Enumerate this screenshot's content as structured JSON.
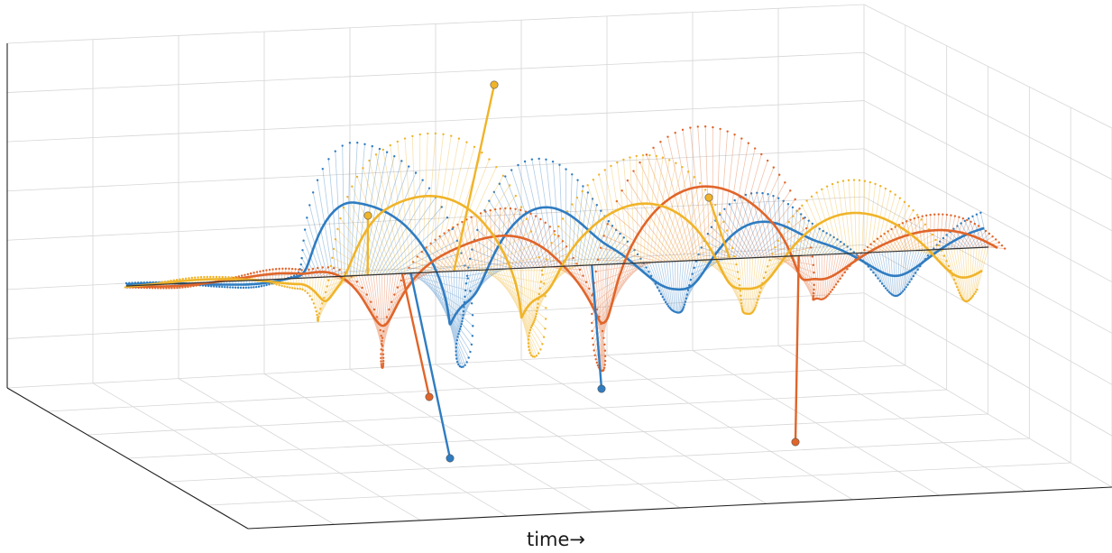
{
  "chart_data": {
    "type": "line",
    "dimension": "3d",
    "title": "",
    "xlabel": "time→",
    "ylabel": "",
    "zlabel": "",
    "grid": true,
    "legend": "none",
    "axis_ticks": "none",
    "t_range": [
      0,
      10
    ],
    "series": [
      {
        "color": "#2F7CC1",
        "description_values": {
          "t": [
            0,
            1,
            2,
            2.6,
            3.2,
            4,
            4.8,
            5.5,
            6.3,
            7.2,
            8,
            9,
            10
          ],
          "amplitude": [
            0.05,
            0.1,
            0.2,
            2.4,
            2.8,
            1.2,
            2.2,
            1.0,
            0.9,
            1.5,
            0.6,
            0.8,
            0.7
          ]
        }
      },
      {
        "color": "#E0652A",
        "description_values": {
          "t": [
            0,
            1,
            2,
            2.6,
            3.2,
            4,
            4.8,
            5.5,
            6.3,
            7.2,
            8,
            9,
            10
          ],
          "amplitude": [
            0.05,
            0.1,
            0.2,
            1.6,
            1.7,
            1.0,
            1.3,
            1.9,
            2.6,
            2.2,
            0.8,
            0.6,
            0.7
          ]
        }
      },
      {
        "color": "#F0B429",
        "description_values": {
          "t": [
            0,
            1,
            2,
            2.6,
            3.2,
            4,
            4.8,
            5.5,
            6.3,
            7.2,
            8,
            9,
            10
          ],
          "amplitude": [
            0.05,
            0.1,
            0.2,
            1.3,
            2.4,
            2.9,
            1.1,
            1.8,
            2.0,
            1.0,
            1.4,
            1.2,
            0.9
          ]
        }
      }
    ]
  }
}
